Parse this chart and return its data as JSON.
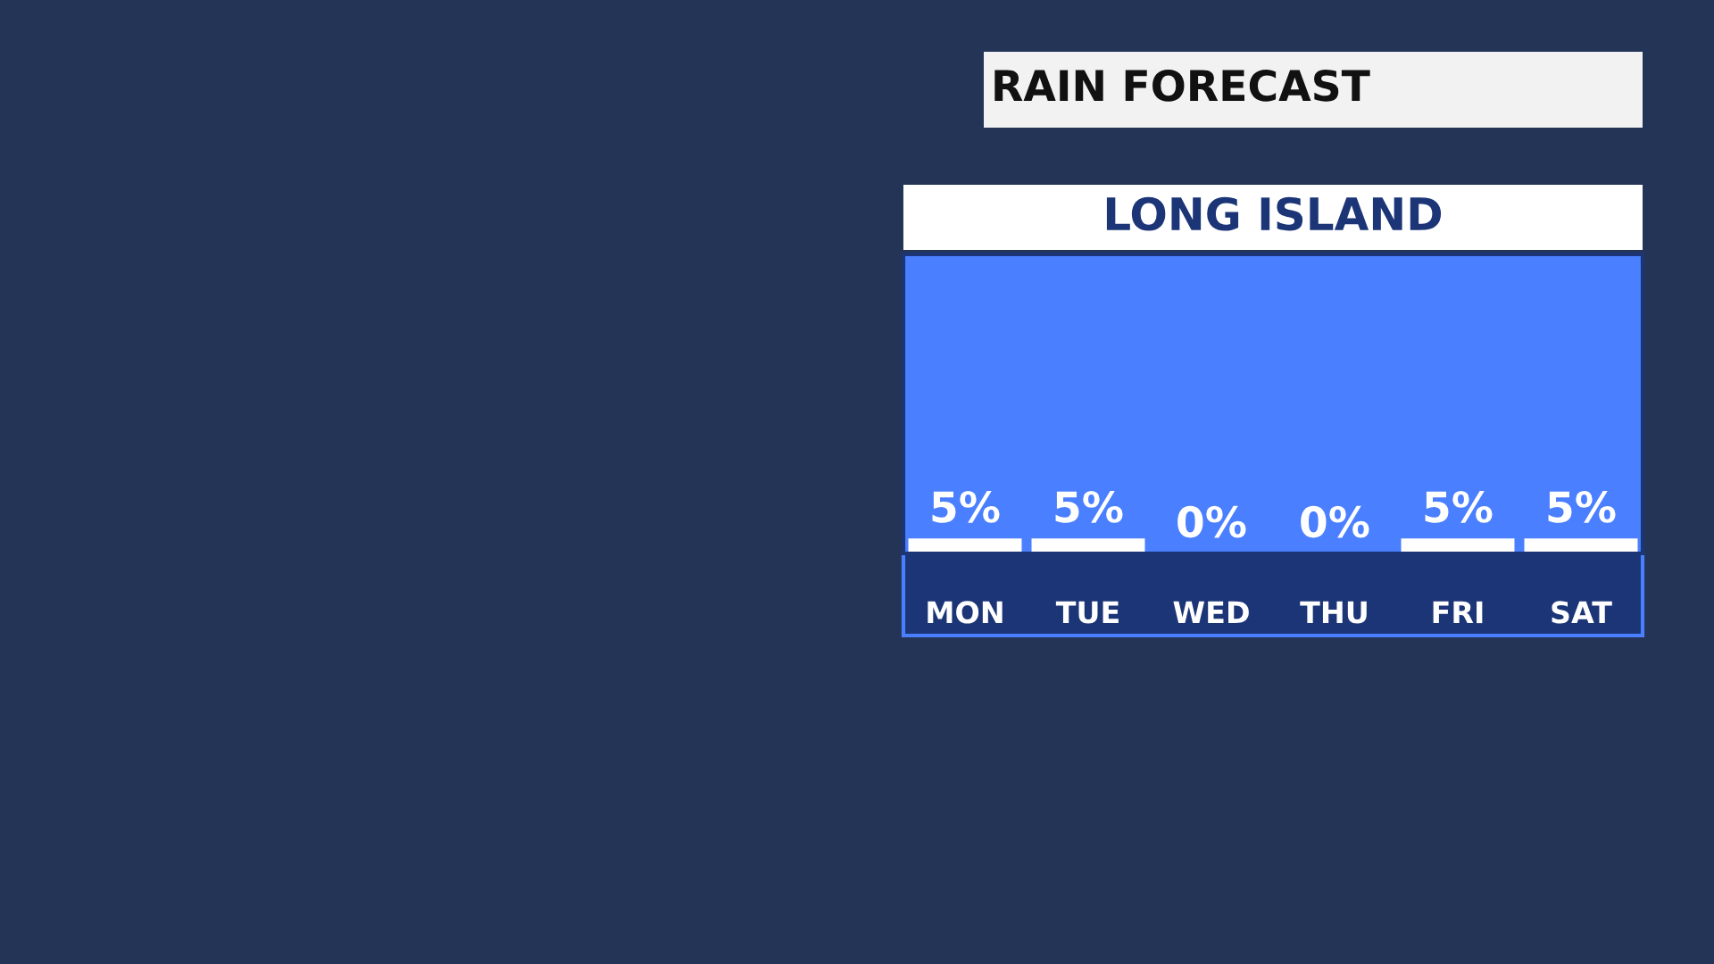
{
  "chart_data": {
    "type": "bar",
    "title": "RAIN FORECAST",
    "subtitle": "LONG ISLAND",
    "categories": [
      "MON",
      "TUE",
      "WED",
      "THU",
      "FRI",
      "SAT"
    ],
    "values": [
      5,
      5,
      0,
      0,
      5,
      5
    ],
    "value_labels": [
      "5%",
      "5%",
      "0%",
      "0%",
      "5%",
      "5%"
    ],
    "color": "#ffffff",
    "ylim": [
      0,
      100
    ],
    "grid": false,
    "legend": false
  }
}
